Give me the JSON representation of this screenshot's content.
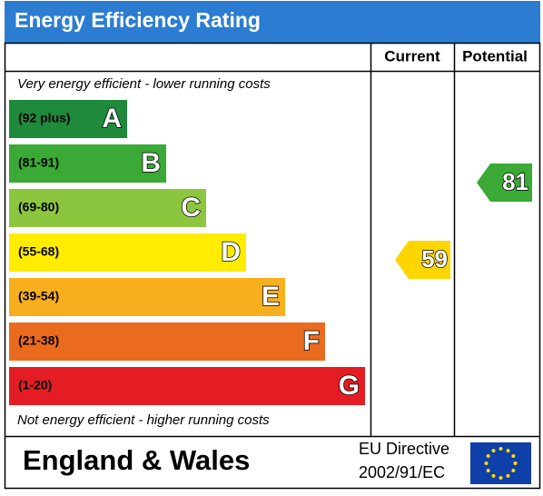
{
  "title": "Energy Efficiency Rating",
  "headers": {
    "current": "Current",
    "potential": "Potential"
  },
  "top_note": "Very energy efficient - lower running costs",
  "bands": [
    {
      "range": "(92 plus)",
      "letter": "A"
    },
    {
      "range": "(81-91)",
      "letter": "B"
    },
    {
      "range": "(69-80)",
      "letter": "C"
    },
    {
      "range": "(55-68)",
      "letter": "D"
    },
    {
      "range": "(39-54)",
      "letter": "E"
    },
    {
      "range": "(21-38)",
      "letter": "F"
    },
    {
      "range": "(1-20)",
      "letter": "G"
    }
  ],
  "current": 59,
  "potential": 81,
  "bottom_note": "Not energy efficient - higher running costs",
  "footer": {
    "region": "England & Wales",
    "directive": [
      "EU Directive",
      "2002/91/EC"
    ]
  }
}
